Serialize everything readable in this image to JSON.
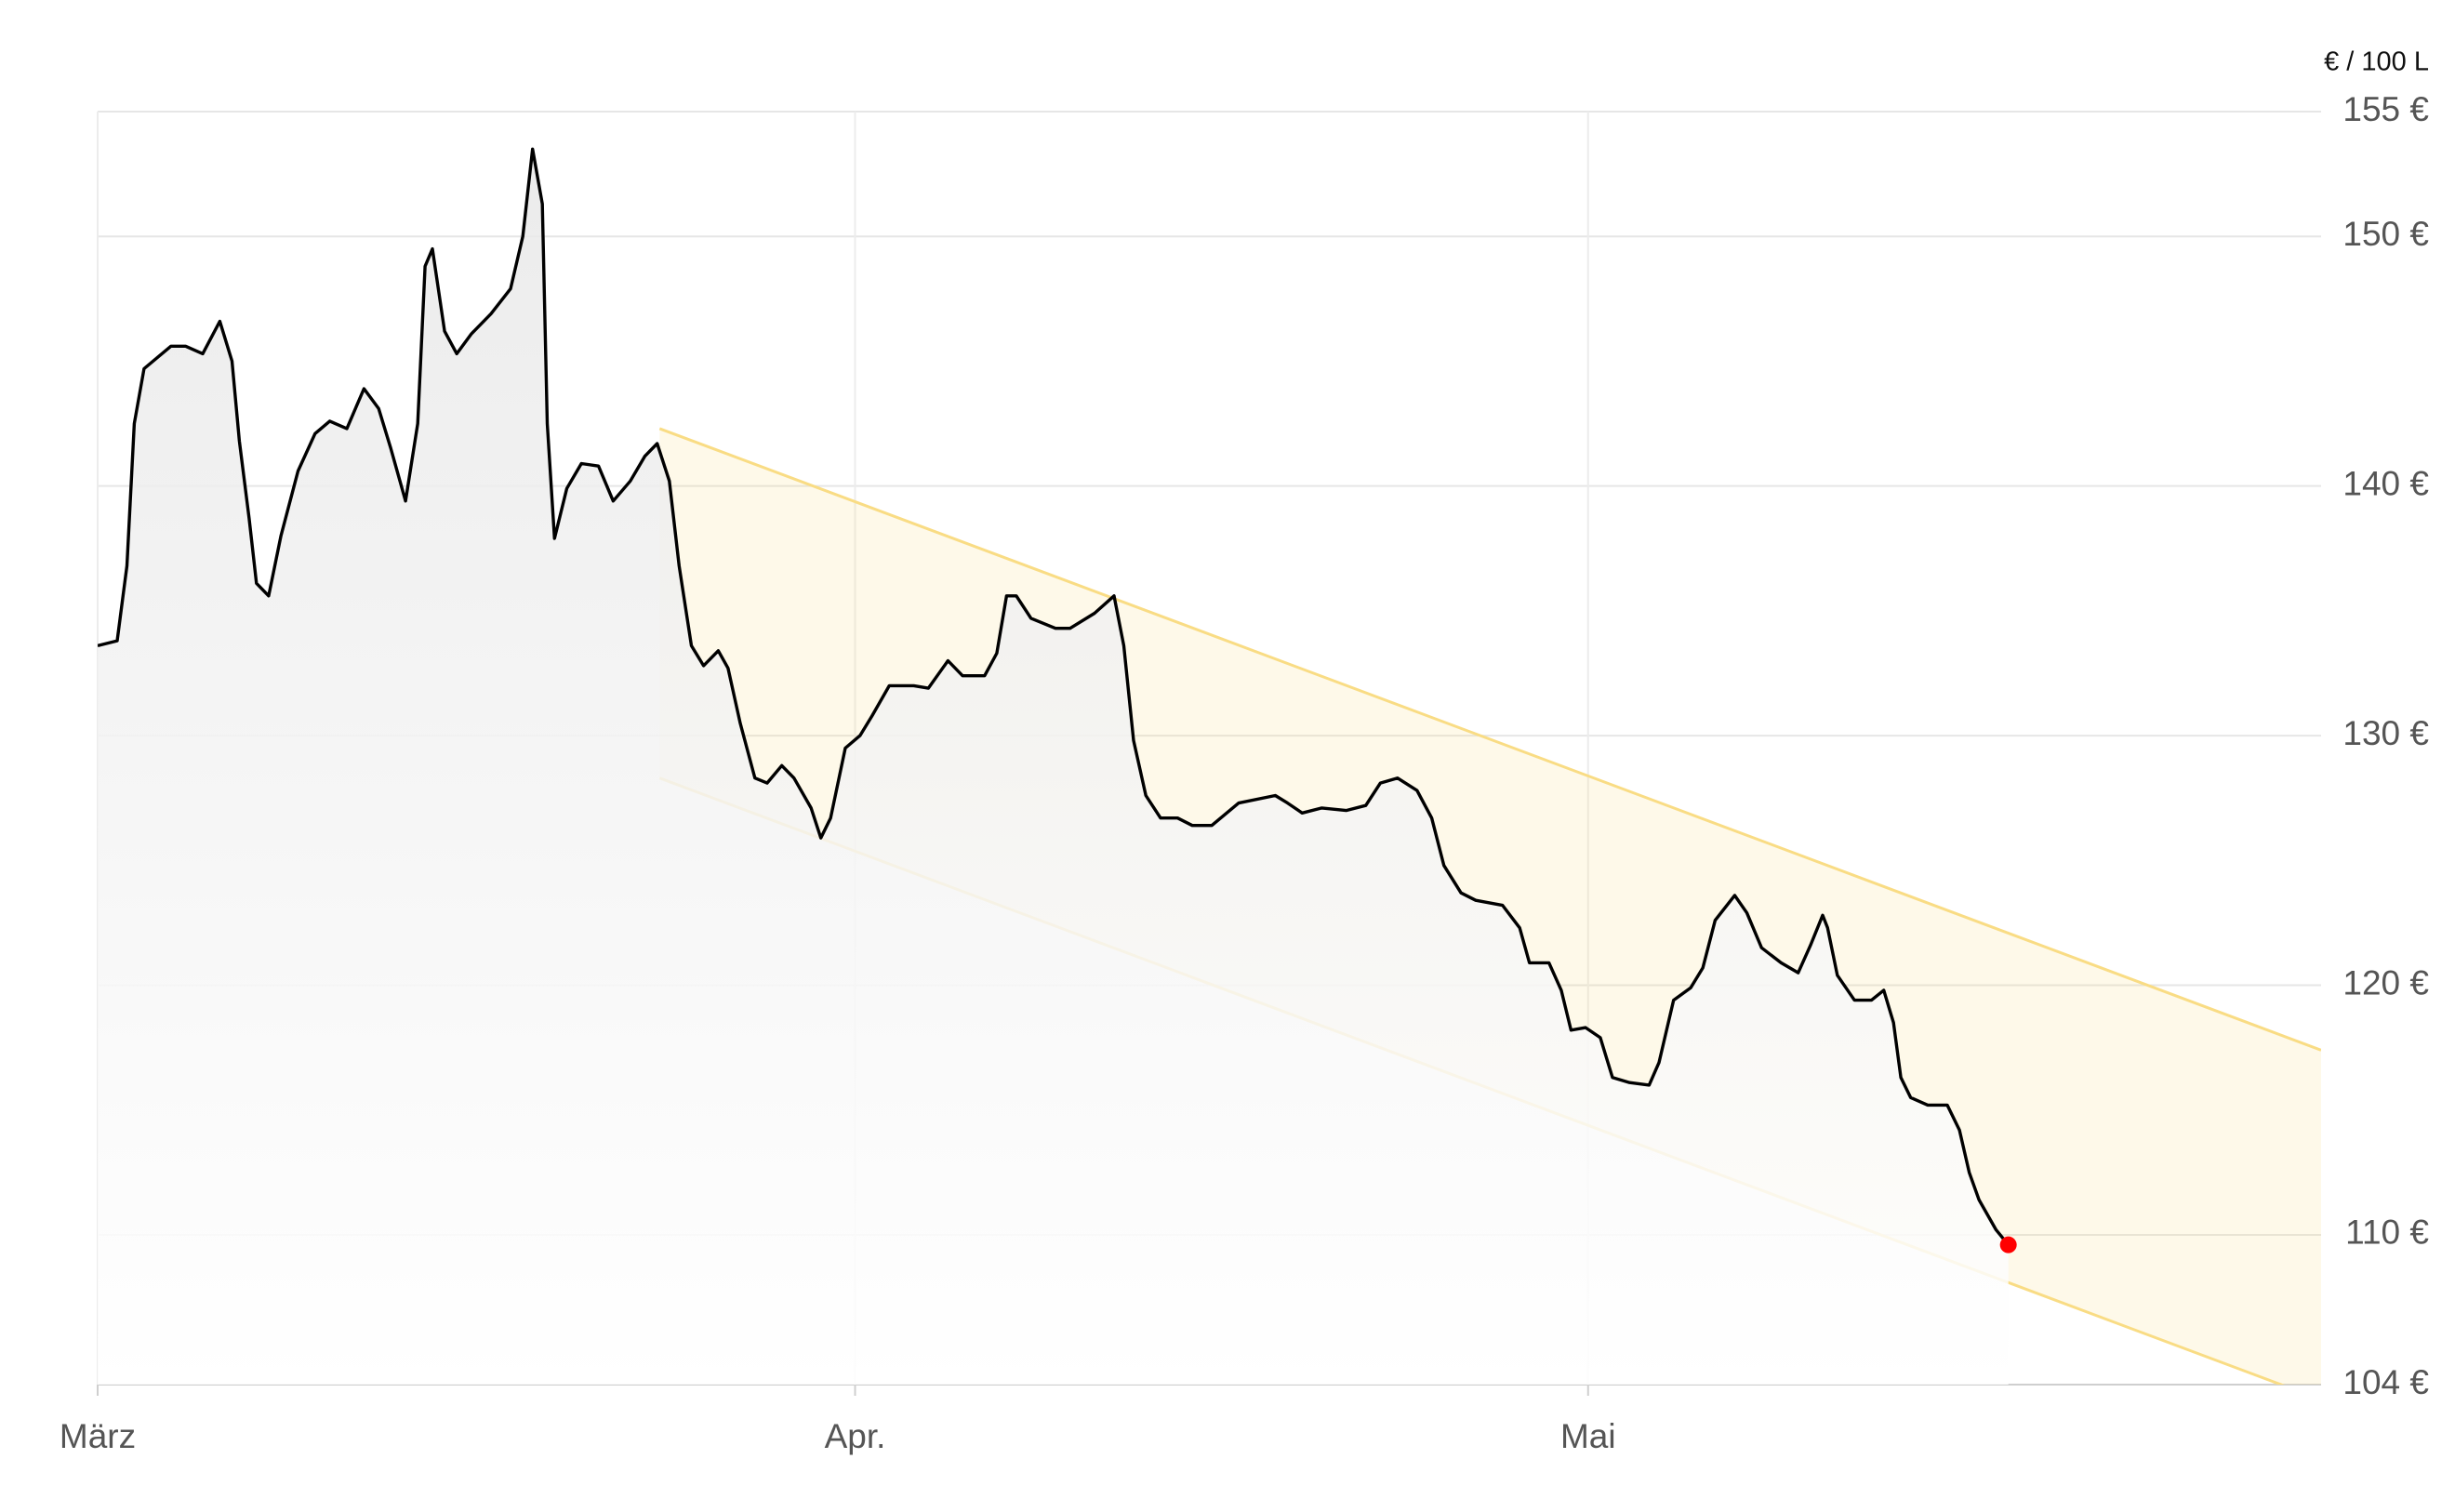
{
  "chart_data": {
    "type": "area",
    "unit_label": "€ / 100 L",
    "x": [
      0,
      0.8,
      1.2,
      1.5,
      1.9,
      3.0,
      3.6,
      4.3,
      5.0,
      5.5,
      5.8,
      6.2,
      6.5,
      7.0,
      7.5,
      8.2,
      8.9,
      9.5,
      10.2,
      10.9,
      11.5,
      12.0,
      12.6,
      13.1,
      13.4,
      13.7,
      14.2,
      14.7,
      15.3,
      16.1,
      16.9,
      17.4,
      17.8,
      18.2,
      18.4,
      18.7,
      19.2,
      19.8,
      20.5,
      21.1,
      21.8,
      22.4,
      22.9,
      23.4,
      23.8,
      24.3,
      24.8,
      25.4,
      25.8,
      26.3,
      26.9,
      27.4,
      28.0,
      28.5,
      29.2,
      29.6,
      30.0,
      30.6,
      31.2,
      31.7,
      32.4,
      33.4,
      34.0,
      34.8,
      35.4,
      36.3,
      36.8,
      37.2,
      37.6,
      38.2,
      39.2,
      39.8,
      40.8,
      41.6,
      42.0,
      42.4,
      42.9,
      43.5,
      44.2,
      44.8,
      45.6,
      46.7,
      48.2,
      48.7,
      49.3,
      50.1,
      51.1,
      51.9,
      52.5,
      53.2,
      54.0,
      54.6,
      55.1,
      55.8,
      56.4,
      57.5,
      58.2,
      58.6,
      59.4,
      59.9,
      60.3,
      60.9,
      61.5,
      62.0,
      62.7,
      63.5,
      63.9,
      64.5,
      65.2,
      65.7,
      66.2,
      67.0,
      67.5,
      68.1,
      68.9,
      69.6,
      70.1,
      70.6,
      70.8,
      71.2,
      71.9,
      72.6,
      73.1,
      73.5,
      73.8,
      74.2,
      74.9,
      75.7,
      76.2,
      76.6,
      77.0,
      77.7,
      78.2
    ],
    "series": [
      {
        "color": "#000000",
        "marker_color": "#ff0000",
        "values": [
          133.6,
          133.8,
          136.8,
          142.5,
          144.7,
          145.6,
          145.6,
          145.3,
          146.6,
          145.0,
          141.8,
          138.7,
          136.1,
          135.6,
          138.0,
          140.6,
          142.1,
          142.6,
          142.3,
          143.9,
          143.1,
          141.5,
          139.4,
          142.5,
          148.8,
          149.5,
          146.2,
          145.3,
          146.1,
          146.9,
          147.9,
          150.0,
          153.5,
          151.3,
          142.5,
          137.9,
          139.9,
          140.9,
          140.8,
          139.4,
          140.2,
          141.2,
          141.7,
          140.2,
          136.8,
          133.6,
          132.8,
          133.4,
          132.7,
          130.5,
          128.3,
          128.1,
          128.8,
          128.3,
          127.1,
          125.9,
          126.7,
          129.5,
          130.0,
          130.8,
          132.0,
          132.0,
          131.9,
          133.0,
          132.4,
          132.4,
          133.3,
          135.6,
          135.6,
          134.7,
          134.3,
          134.3,
          134.9,
          135.6,
          133.6,
          129.8,
          127.6,
          126.7,
          126.7,
          126.4,
          126.4,
          127.3,
          127.6,
          127.3,
          126.9,
          127.1,
          127.0,
          127.2,
          128.1,
          128.3,
          127.8,
          126.7,
          124.8,
          123.7,
          123.4,
          123.2,
          122.3,
          120.9,
          120.9,
          119.8,
          118.2,
          118.3,
          117.9,
          116.3,
          116.1,
          116.0,
          116.9,
          119.4,
          119.9,
          120.7,
          122.6,
          123.6,
          122.9,
          121.5,
          120.9,
          120.5,
          121.6,
          122.8,
          122.3,
          120.4,
          119.4,
          119.4,
          119.8,
          118.5,
          116.3,
          115.5,
          115.2,
          115.2,
          114.2,
          112.5,
          111.4,
          110.2,
          109.6
        ]
      }
    ],
    "channel": {
      "x": [
        23,
        91
      ],
      "upper": [
        142.3,
        117.4
      ],
      "lower": [
        128.3,
        103.4
      ],
      "color": "#f9dc84"
    },
    "xlim": [
      0,
      91
    ],
    "xticks": [
      {
        "value": 0,
        "label": "März"
      },
      {
        "value": 31,
        "label": "Apr."
      },
      {
        "value": 61,
        "label": "Mai"
      }
    ],
    "ylim": [
      104,
      155
    ],
    "yticks": [
      {
        "value": 104,
        "label": "104 €"
      },
      {
        "value": 110,
        "label": "110 €"
      },
      {
        "value": 120,
        "label": "120 €"
      },
      {
        "value": 130,
        "label": "130 €"
      },
      {
        "value": 140,
        "label": "140 €"
      },
      {
        "value": 150,
        "label": "150 €"
      },
      {
        "value": 155,
        "label": "155 €"
      }
    ],
    "grid": true
  }
}
